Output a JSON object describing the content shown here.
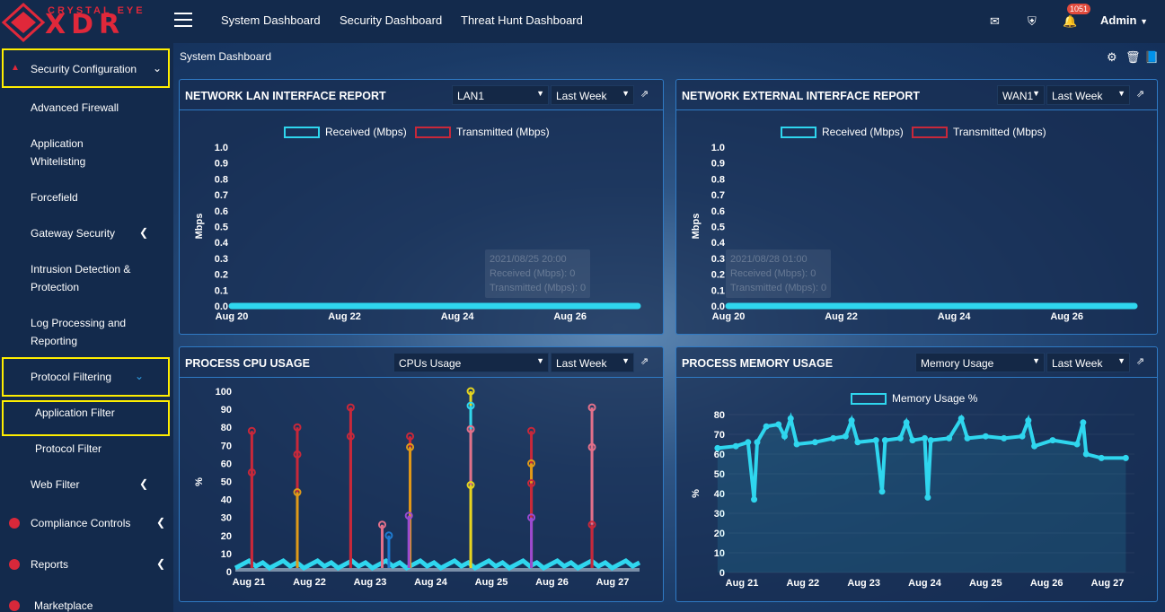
{
  "logo": {
    "line1": "CRYSTAL EYE",
    "line2": "XDR"
  },
  "nav": {
    "items": [
      "System Dashboard",
      "Security Dashboard",
      "Threat Hunt Dashboard"
    ]
  },
  "header": {
    "notif_count": "1051",
    "user": "Admin"
  },
  "sidebar": {
    "items": [
      {
        "label": "Security Configuration"
      },
      {
        "label": "Advanced Firewall"
      },
      {
        "label": "Application Whitelisting"
      },
      {
        "label": "Forcefield"
      },
      {
        "label": "Gateway Security"
      },
      {
        "label": "Intrusion Detection & Protection"
      },
      {
        "label": "Log Processing and Reporting"
      },
      {
        "label": "Protocol Filtering"
      },
      {
        "label": "Application Filter"
      },
      {
        "label": "Protocol Filter"
      },
      {
        "label": "Web Filter"
      },
      {
        "label": "Compliance Controls"
      },
      {
        "label": "Reports"
      },
      {
        "label": "Marketplace"
      }
    ]
  },
  "breadcrumb": "System Dashboard",
  "colors": {
    "received": "#2fd6ee",
    "transmitted": "#c8283a",
    "accent": "#ffee00"
  },
  "panels": {
    "lan": {
      "title": "NETWORK LAN INTERFACE REPORT",
      "select1": "LAN1",
      "select2": "Last Week",
      "legend": [
        "Received (Mbps)",
        "Transmitted (Mbps)"
      ],
      "ylabel": "Mbps",
      "tooltip": {
        "date": "2021/08/25 20:00",
        "received": "Received (Mbps): 0",
        "transmitted": "Transmitted (Mbps): 0"
      }
    },
    "ext": {
      "title": "NETWORK EXTERNAL INTERFACE REPORT",
      "select1": "WAN1",
      "select2": "Last Week",
      "legend": [
        "Received (Mbps)",
        "Transmitted (Mbps)"
      ],
      "ylabel": "Mbps",
      "tooltip": {
        "date": "2021/08/28 01:00",
        "received": "Received (Mbps): 0",
        "transmitted": "Transmitted (Mbps): 0"
      }
    },
    "cpu": {
      "title": "PROCESS CPU USAGE",
      "select1": "CPUs Usage",
      "select2": "Last Week",
      "ylabel": "%"
    },
    "mem": {
      "title": "PROCESS MEMORY USAGE",
      "select1": "Memory Usage",
      "select2": "Last Week",
      "legend": [
        "Memory Usage %"
      ],
      "ylabel": "%"
    }
  },
  "chart_data": [
    {
      "type": "line",
      "title": "NETWORK LAN INTERFACE REPORT",
      "ylabel": "Mbps",
      "ylim": [
        0,
        1
      ],
      "yticks": [
        "1.0",
        "0.9",
        "0.8",
        "0.7",
        "0.6",
        "0.5",
        "0.4",
        "0.3",
        "0.2",
        "0.1",
        "0.0"
      ],
      "xticks": [
        "Aug 20",
        "Aug 22",
        "Aug 24",
        "Aug 26"
      ],
      "series": [
        {
          "name": "Received (Mbps)",
          "values": [
            0,
            0,
            0,
            0,
            0,
            0,
            0
          ]
        },
        {
          "name": "Transmitted (Mbps)",
          "values": [
            0,
            0,
            0,
            0,
            0,
            0,
            0
          ]
        }
      ]
    },
    {
      "type": "line",
      "title": "NETWORK EXTERNAL INTERFACE REPORT",
      "ylabel": "Mbps",
      "ylim": [
        0,
        1
      ],
      "yticks": [
        "1.0",
        "0.9",
        "0.8",
        "0.7",
        "0.6",
        "0.5",
        "0.4",
        "0.3",
        "0.2",
        "0.1",
        "0.0"
      ],
      "xticks": [
        "Aug 20",
        "Aug 22",
        "Aug 24",
        "Aug 26"
      ],
      "series": [
        {
          "name": "Received (Mbps)",
          "values": [
            0,
            0,
            0,
            0,
            0,
            0,
            0
          ]
        },
        {
          "name": "Transmitted (Mbps)",
          "values": [
            0,
            0,
            0,
            0,
            0,
            0,
            0
          ]
        }
      ]
    },
    {
      "type": "line",
      "title": "PROCESS CPU USAGE",
      "ylabel": "%",
      "ylim": [
        0,
        100
      ],
      "yticks": [
        "100",
        "90",
        "80",
        "70",
        "60",
        "50",
        "40",
        "30",
        "20",
        "10",
        "0"
      ],
      "xticks": [
        "Aug 21",
        "Aug 22",
        "Aug 23",
        "Aug 24",
        "Aug 25",
        "Aug 26",
        "Aug 27"
      ],
      "spikes": [
        {
          "day": 21.05,
          "value": 78,
          "color": "#c8283a"
        },
        {
          "day": 21.05,
          "value": 55,
          "color": "#c8283a"
        },
        {
          "day": 21.8,
          "value": 80,
          "color": "#c8283a"
        },
        {
          "day": 21.8,
          "value": 65,
          "color": "#c8283a"
        },
        {
          "day": 21.8,
          "value": 44,
          "color": "#e09a18"
        },
        {
          "day": 22.68,
          "value": 91,
          "color": "#c8283a"
        },
        {
          "day": 22.68,
          "value": 75,
          "color": "#c8283a"
        },
        {
          "day": 23.2,
          "value": 26,
          "color": "#e2708a"
        },
        {
          "day": 23.31,
          "value": 20,
          "color": "#1e7ad0"
        },
        {
          "day": 23.66,
          "value": 75,
          "color": "#c8283a"
        },
        {
          "day": 23.66,
          "value": 69,
          "color": "#e09a18"
        },
        {
          "day": 23.64,
          "value": 31,
          "color": "#9a4ad0"
        },
        {
          "day": 24.66,
          "value": 100,
          "color": "#e6d41e"
        },
        {
          "day": 24.66,
          "value": 92,
          "color": "#2fd6ee"
        },
        {
          "day": 24.66,
          "value": 79,
          "color": "#e2708a"
        },
        {
          "day": 24.66,
          "value": 48,
          "color": "#e6d41e"
        },
        {
          "day": 25.66,
          "value": 78,
          "color": "#c8283a"
        },
        {
          "day": 25.66,
          "value": 60,
          "color": "#e09a18"
        },
        {
          "day": 25.66,
          "value": 49,
          "color": "#c8283a"
        },
        {
          "day": 25.66,
          "value": 30,
          "color": "#9a4ad0"
        },
        {
          "day": 26.66,
          "value": 91,
          "color": "#e2708a"
        },
        {
          "day": 26.66,
          "value": 69,
          "color": "#e2708a"
        },
        {
          "day": 26.66,
          "value": 26,
          "color": "#c8283a"
        }
      ]
    },
    {
      "type": "line",
      "title": "PROCESS MEMORY USAGE",
      "ylabel": "%",
      "ylim": [
        0,
        80
      ],
      "yticks": [
        "80",
        "70",
        "60",
        "50",
        "40",
        "30",
        "20",
        "10",
        "0"
      ],
      "xticks": [
        "Aug 21",
        "Aug 22",
        "Aug 23",
        "Aug 24",
        "Aug 25",
        "Aug 26",
        "Aug 27"
      ],
      "series": [
        {
          "name": "Memory Usage %",
          "points": [
            [
              20.6,
              63
            ],
            [
              20.9,
              64
            ],
            [
              21.1,
              66
            ],
            [
              21.2,
              37
            ],
            [
              21.25,
              66
            ],
            [
              21.4,
              74
            ],
            [
              21.6,
              75
            ],
            [
              21.7,
              69
            ],
            [
              21.8,
              78
            ],
            [
              21.9,
              65
            ],
            [
              22.2,
              66
            ],
            [
              22.5,
              68
            ],
            [
              22.7,
              69
            ],
            [
              22.8,
              77
            ],
            [
              22.9,
              66
            ],
            [
              23.2,
              67
            ],
            [
              23.3,
              41
            ],
            [
              23.35,
              67
            ],
            [
              23.6,
              68
            ],
            [
              23.7,
              76
            ],
            [
              23.8,
              67
            ],
            [
              24.0,
              68
            ],
            [
              24.05,
              38
            ],
            [
              24.1,
              67
            ],
            [
              24.4,
              68
            ],
            [
              24.6,
              78
            ],
            [
              24.7,
              68
            ],
            [
              25.0,
              69
            ],
            [
              25.3,
              68
            ],
            [
              25.6,
              69
            ],
            [
              25.7,
              77
            ],
            [
              25.8,
              64
            ],
            [
              26.1,
              67
            ],
            [
              26.5,
              65
            ],
            [
              26.6,
              76
            ],
            [
              26.65,
              60
            ],
            [
              26.9,
              58
            ],
            [
              27.3,
              58
            ]
          ]
        }
      ]
    }
  ]
}
